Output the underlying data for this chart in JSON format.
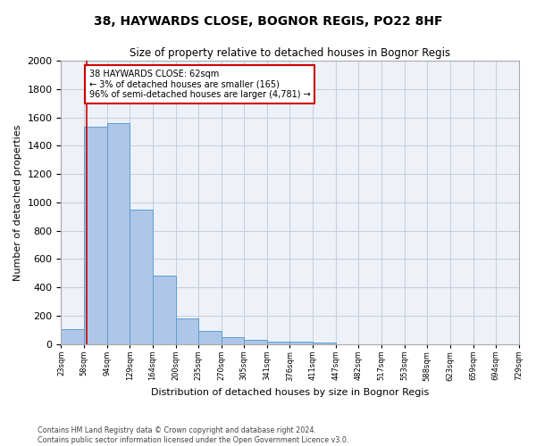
{
  "title_line1": "38, HAYWARDS CLOSE, BOGNOR REGIS, PO22 8HF",
  "title_line2": "Size of property relative to detached houses in Bognor Regis",
  "xlabel": "Distribution of detached houses by size in Bognor Regis",
  "ylabel": "Number of detached properties",
  "footnote": "Contains HM Land Registry data © Crown copyright and database right 2024.\nContains public sector information licensed under the Open Government Licence v3.0.",
  "bar_left_edges": [
    23,
    58,
    94,
    129,
    164,
    200,
    235,
    270,
    305,
    341,
    376,
    411,
    447,
    482,
    517,
    553,
    588,
    623,
    659,
    694
  ],
  "bar_widths": [
    35,
    36,
    35,
    35,
    36,
    35,
    35,
    35,
    36,
    35,
    35,
    36,
    35,
    35,
    36,
    35,
    35,
    36,
    35,
    35
  ],
  "bar_heights": [
    105,
    1535,
    1560,
    950,
    485,
    180,
    92,
    47,
    30,
    20,
    15,
    10,
    0,
    0,
    0,
    0,
    0,
    0,
    0,
    0
  ],
  "bar_color": "#aec6e8",
  "bar_edge_color": "#5a9fd4",
  "tick_labels": [
    "23sqm",
    "58sqm",
    "94sqm",
    "129sqm",
    "164sqm",
    "200sqm",
    "235sqm",
    "270sqm",
    "305sqm",
    "341sqm",
    "376sqm",
    "411sqm",
    "447sqm",
    "482sqm",
    "517sqm",
    "553sqm",
    "588sqm",
    "623sqm",
    "659sqm",
    "694sqm",
    "729sqm"
  ],
  "ylim": [
    0,
    2000
  ],
  "yticks": [
    0,
    200,
    400,
    600,
    800,
    1000,
    1200,
    1400,
    1600,
    1800,
    2000
  ],
  "xlim": [
    23,
    729
  ],
  "property_x": 62,
  "property_line_color": "#cc0000",
  "annotation_text": "38 HAYWARDS CLOSE: 62sqm\n← 3% of detached houses are smaller (165)\n96% of semi-detached houses are larger (4,781) →",
  "annotation_box_color": "#cc0000",
  "background_color": "#ffffff",
  "ax_background_color": "#eef2f8",
  "grid_color": "#c8d0dc"
}
